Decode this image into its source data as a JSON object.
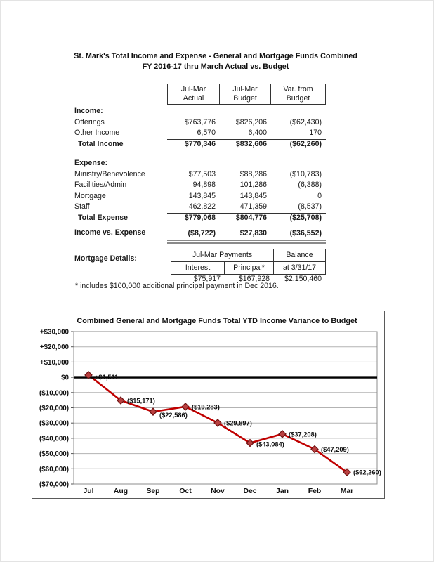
{
  "doc": {
    "title_line1": "St. Mark's Total Income and Expense - General and Mortgage Funds Combined",
    "title_line2": "FY 2016-17 thru March Actual vs. Budget"
  },
  "statement": {
    "header": [
      {
        "line1": "Jul-Mar",
        "line2": "Actual"
      },
      {
        "line1": "Jul-Mar",
        "line2": "Budget"
      },
      {
        "line1": "Var. from",
        "line2": "Budget"
      }
    ],
    "rows": [
      {
        "label": "Income:",
        "style": "section"
      },
      {
        "label": "Offerings",
        "values": [
          "$763,776",
          "$826,206",
          "($62,430)"
        ]
      },
      {
        "label": "Other Income",
        "values": [
          "6,570",
          "6,400",
          "170"
        ],
        "rule_below": "single"
      },
      {
        "label": "Total Income",
        "style": "total",
        "indent": true,
        "values": [
          "$770,346",
          "$832,606",
          "($62,260)"
        ]
      },
      {
        "spacer": true
      },
      {
        "label": "Expense:",
        "style": "section"
      },
      {
        "label": "Ministry/Benevolence",
        "values": [
          "$77,503",
          "$88,286",
          "($10,783)"
        ]
      },
      {
        "label": "Facilities/Admin",
        "values": [
          "94,898",
          "101,286",
          "(6,388)"
        ]
      },
      {
        "label": "Mortgage",
        "values": [
          "143,845",
          "143,845",
          "0"
        ]
      },
      {
        "label": "Staff",
        "values": [
          "462,822",
          "471,359",
          "(8,537)"
        ],
        "rule_below": "single"
      },
      {
        "label": "Total Expense",
        "style": "total",
        "indent": true,
        "values": [
          "$779,068",
          "$804,776",
          "($25,708)"
        ]
      },
      {
        "spacer": true,
        "small": true
      },
      {
        "label": "Income vs. Expense",
        "style": "total",
        "values": [
          "($8,722)",
          "$27,830",
          "($36,552)"
        ],
        "rule_above": "single",
        "rule_below": "double-thick"
      }
    ]
  },
  "mortgage": {
    "label": "Mortgage Details:",
    "header_span": "Jul-Mar Payments",
    "header_balance_line1": "Balance",
    "header_balance_line2": "at 3/31/17",
    "col1": "Interest",
    "col2": "Principal*",
    "values": [
      "$75,917",
      "$167,928",
      "$2,150,460"
    ],
    "footnote": "* includes $100,000 additional principal payment in Dec 2016."
  },
  "chart_data": {
    "type": "line",
    "title": "Combined General and Mortgage Funds Total YTD Income Variance to Budget",
    "categories": [
      "Jul",
      "Aug",
      "Sep",
      "Oct",
      "Nov",
      "Dec",
      "Jan",
      "Feb",
      "Mar"
    ],
    "series": [
      {
        "name": "YTD Income Variance to Budget",
        "values": [
          1511,
          -15171,
          -22586,
          -19283,
          -29897,
          -43084,
          -37208,
          -47209,
          -62260
        ],
        "point_labels": [
          "+$1,511",
          "($15,171)",
          "($22,586)",
          "($19,283)",
          "($29,897)",
          "($43,084)",
          "($37,208)",
          "($47,209)",
          "($62,260)"
        ],
        "color": "#c00000"
      }
    ],
    "ylim": [
      -70000,
      30000
    ],
    "ytick_interval": 10000,
    "ytick_labels": [
      "+$30,000",
      "+$20,000",
      "+$10,000",
      "$0",
      "($10,000)",
      "($20,000)",
      "($30,000)",
      "($40,000)",
      "($50,000)",
      "($60,000)",
      "($70,000)"
    ],
    "grid": true,
    "zero_line_emphasis": true,
    "legend": "none",
    "colors": {
      "line": "#c00000",
      "marker_fill": "#b94040",
      "marker_stroke": "#6e1212",
      "gridline": "#b3b3b3",
      "zero_line": "#000000",
      "plot_border": "#8c8c8c"
    }
  }
}
